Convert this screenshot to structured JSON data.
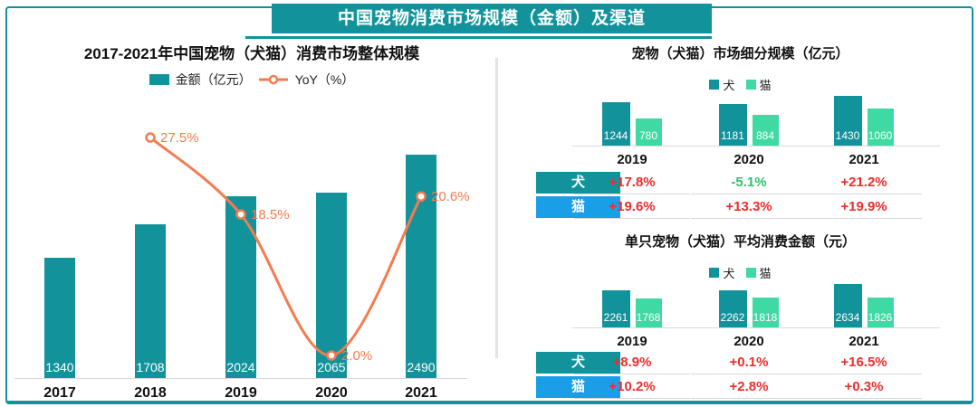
{
  "banner": {
    "title": "中国宠物消费市场规模（金额）及渠道"
  },
  "colors": {
    "teal": "#12939B",
    "mint": "#3FD9A4",
    "orange": "#F57B4F",
    "blue": "#1B9EE8",
    "positive_red": "#EE2C2C",
    "negative_green": "#2FBE6C"
  },
  "chart_data": [
    {
      "id": "overall",
      "type": "bar+line",
      "title": "2017-2021年中国宠物（犬猫）消费市场整体规模",
      "categories": [
        "2017",
        "2018",
        "2019",
        "2020",
        "2021"
      ],
      "series": [
        {
          "name": "金额（亿元）",
          "type": "bar",
          "color": "#12939B",
          "values": [
            1340,
            1708,
            2024,
            2065,
            2490
          ]
        },
        {
          "name": "YoY（%）",
          "type": "line",
          "color": "#F57B4F",
          "values": [
            null,
            27.5,
            18.5,
            2.0,
            20.6
          ],
          "labels": [
            "",
            "27.5%",
            "18.5%",
            "2.0%",
            "20.6%"
          ]
        }
      ],
      "legend_position": "top",
      "grid": false
    },
    {
      "id": "segment",
      "type": "bar",
      "title": "宠物（犬猫）市场细分规模（亿元）",
      "categories": [
        "2019",
        "2020",
        "2021"
      ],
      "series": [
        {
          "name": "犬",
          "color": "#12939B",
          "values": [
            1244,
            1181,
            1430
          ]
        },
        {
          "name": "猫",
          "color": "#3FD9A4",
          "values": [
            780,
            884,
            1060
          ]
        }
      ],
      "table": {
        "rows": [
          {
            "header": "犬",
            "header_bg": "#12939B",
            "cells": [
              "+17.8%",
              "-5.1%",
              "+21.2%"
            ]
          },
          {
            "header": "猫",
            "header_bg": "#1B9EE8",
            "cells": [
              "+19.6%",
              "+13.3%",
              "+19.9%"
            ]
          }
        ]
      },
      "legend_position": "top",
      "grid": false
    },
    {
      "id": "average",
      "type": "bar",
      "title": "单只宠物（犬猫）平均消费金额（元）",
      "categories": [
        "2019",
        "2020",
        "2021"
      ],
      "series": [
        {
          "name": "犬",
          "color": "#12939B",
          "values": [
            2261,
            2262,
            2634
          ]
        },
        {
          "name": "猫",
          "color": "#3FD9A4",
          "values": [
            1768,
            1818,
            1826
          ]
        }
      ],
      "table": {
        "rows": [
          {
            "header": "犬",
            "header_bg": "#12939B",
            "cells": [
              "+8.9%",
              "+0.1%",
              "+16.5%"
            ]
          },
          {
            "header": "猫",
            "header_bg": "#1B9EE8",
            "cells": [
              "+10.2%",
              "+2.8%",
              "+0.3%"
            ]
          }
        ]
      },
      "legend_position": "top",
      "grid": false
    }
  ]
}
